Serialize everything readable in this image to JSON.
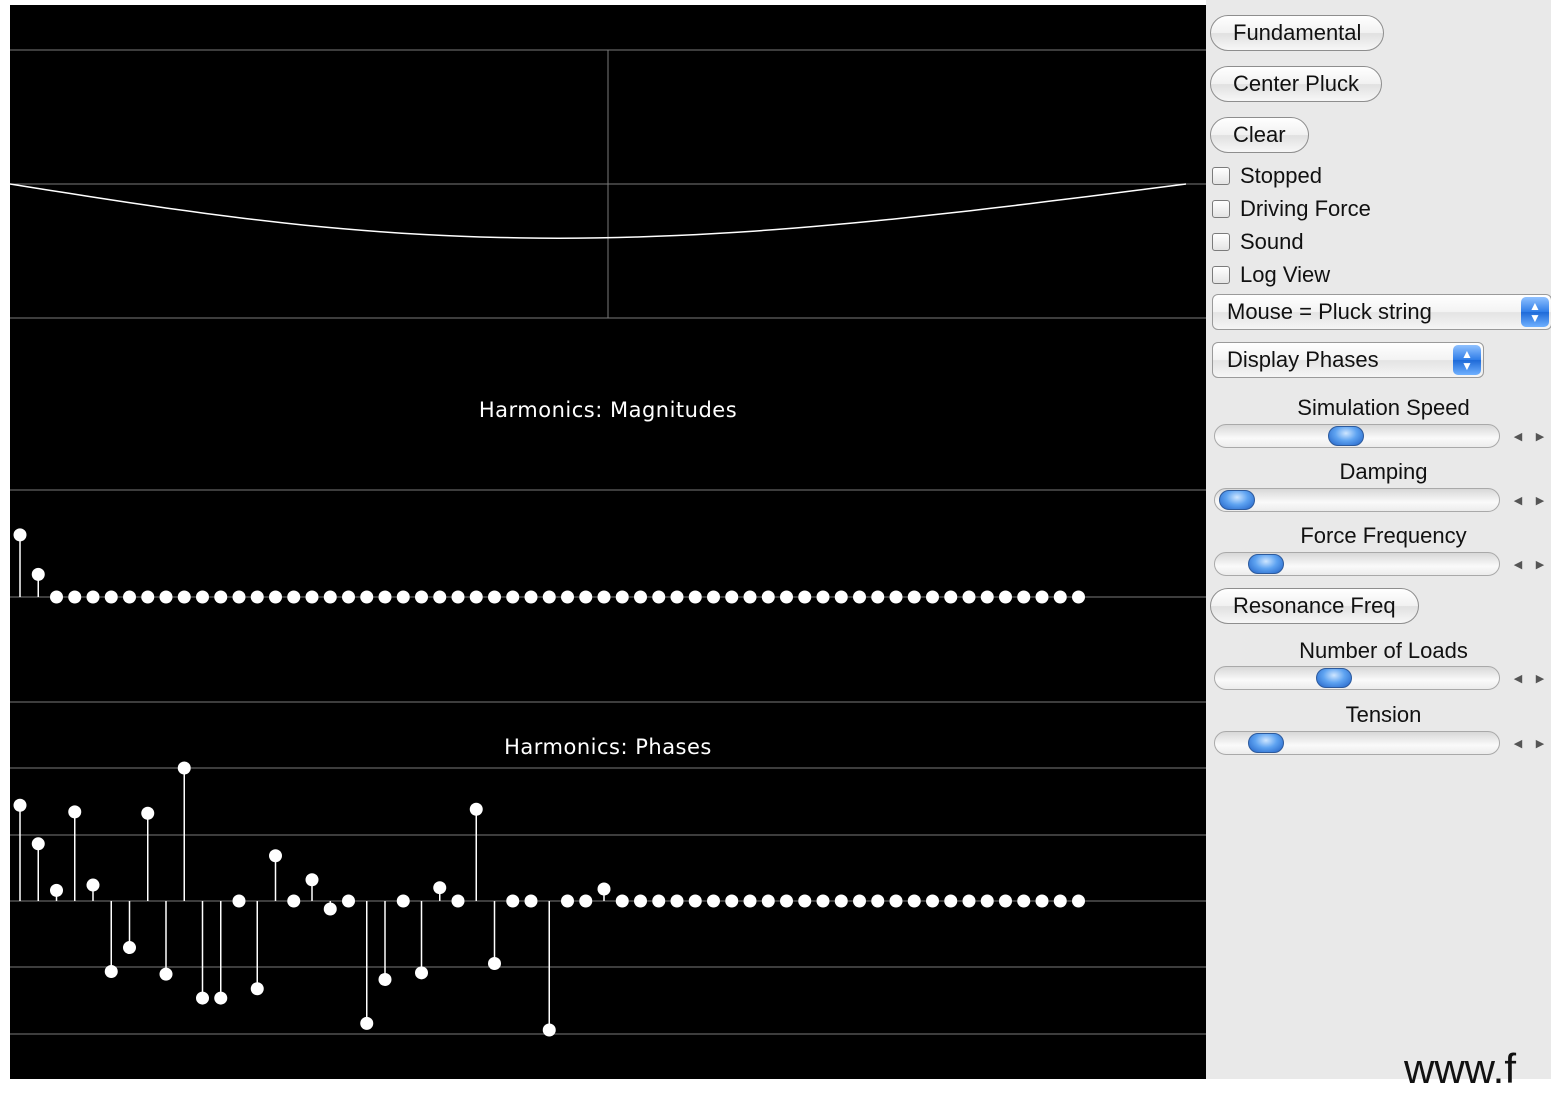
{
  "graphs": {
    "magnitudes_label": "Harmonics: Magnitudes",
    "phases_label": "Harmonics: Phases"
  },
  "magnitudes": [
    0.55,
    0.2,
    0,
    0,
    0,
    0,
    0,
    0,
    0,
    0,
    0,
    0,
    0,
    0,
    0,
    0,
    0,
    0,
    0,
    0,
    0,
    0,
    0,
    0,
    0,
    0,
    0,
    0,
    0,
    0,
    0,
    0,
    0,
    0,
    0,
    0,
    0,
    0,
    0,
    0,
    0,
    0,
    0,
    0,
    0,
    0,
    0,
    0,
    0,
    0,
    0,
    0,
    0,
    0,
    0,
    0,
    0,
    0,
    0
  ],
  "phases": [
    0.72,
    0.43,
    0.08,
    0.67,
    0.12,
    -0.53,
    -0.35,
    0.66,
    -0.55,
    1.0,
    -0.73,
    -0.73,
    0,
    -0.66,
    0.34,
    0,
    0.16,
    -0.06,
    0,
    -0.92,
    -0.59,
    0,
    -0.54,
    0.1,
    0,
    0.69,
    -0.47,
    0,
    0,
    -0.97,
    0,
    0,
    0.09,
    0,
    0,
    0,
    0,
    0,
    0,
    0,
    0,
    0,
    0,
    0,
    0,
    0,
    0,
    0,
    0,
    0,
    0,
    0,
    0,
    0,
    0,
    0,
    0,
    0,
    0
  ],
  "controls": {
    "buttons": {
      "fundamental": "Fundamental",
      "center_pluck": "Center Pluck",
      "clear": "Clear",
      "resonance_freq": "Resonance Freq"
    },
    "checkboxes": {
      "stopped": "Stopped",
      "driving_force": "Driving Force",
      "sound": "Sound",
      "log_view": "Log View"
    },
    "selects": {
      "mouse_mode": "Mouse = Pluck string",
      "display_mode": "Display Phases"
    },
    "sliders": {
      "simulation_speed": {
        "label": "Simulation Speed",
        "value": 0.45
      },
      "damping": {
        "label": "Damping",
        "value": 0.0
      },
      "force_frequency": {
        "label": "Force Frequency",
        "value": 0.12
      },
      "number_of_loads": {
        "label": "Number of Loads",
        "value": 0.4
      },
      "tension": {
        "label": "Tension",
        "value": 0.12
      }
    }
  },
  "footer": {
    "text": "www.f"
  }
}
